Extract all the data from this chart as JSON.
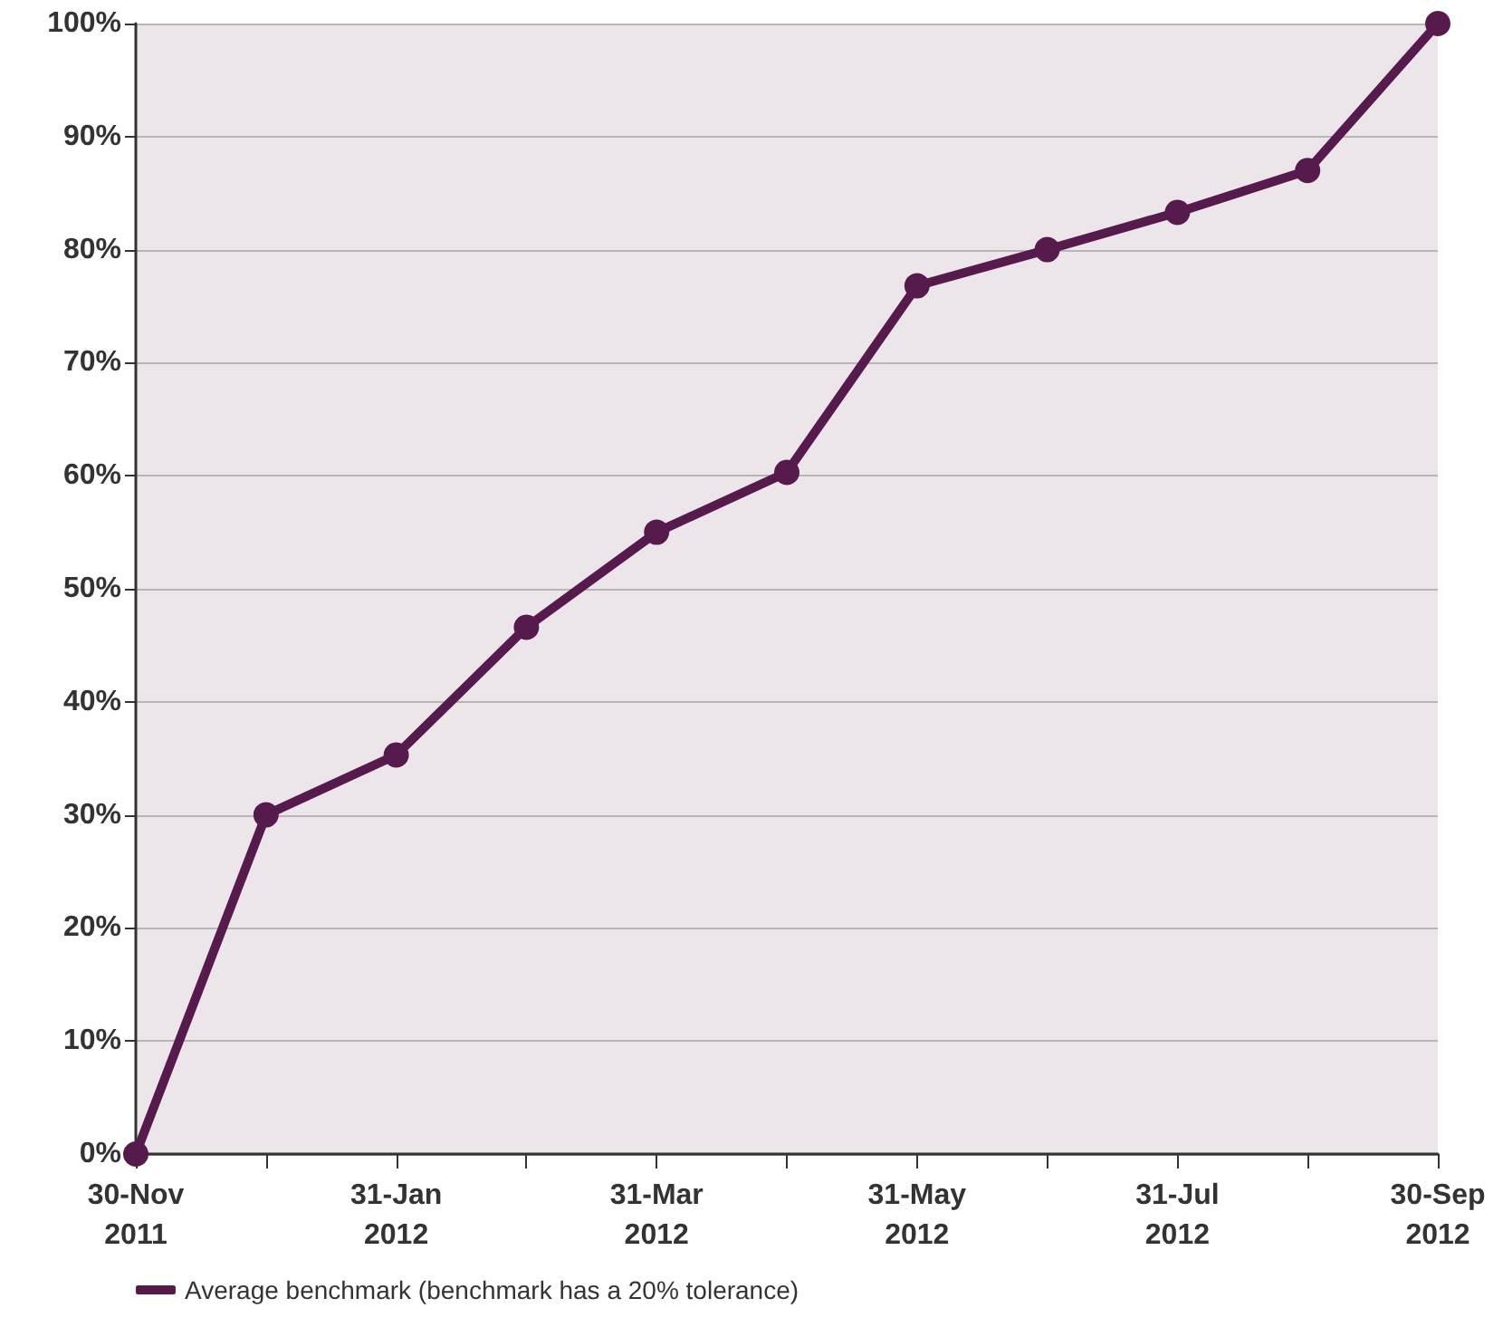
{
  "chart_data": {
    "type": "line",
    "categories": [
      "30-Nov\n2011",
      null,
      "31-Jan\n2012",
      null,
      "31-Mar\n2012",
      null,
      "31-May\n2012",
      null,
      "31-Jul\n2012",
      null,
      "30-Sep\n2012"
    ],
    "series": [
      {
        "name": "Average benchmark (benchmark has a 20% tolerance)",
        "color": "#561a4c",
        "values": [
          0,
          30,
          35.3,
          46.6,
          55,
          60.3,
          76.8,
          80,
          83.3,
          87,
          100
        ]
      }
    ],
    "ylim": [
      0,
      100
    ],
    "yticks": [
      {
        "value": 0,
        "label": "0%"
      },
      {
        "value": 10,
        "label": "10%"
      },
      {
        "value": 20,
        "label": "20%"
      },
      {
        "value": 30,
        "label": "30%"
      },
      {
        "value": 40,
        "label": "40%"
      },
      {
        "value": 50,
        "label": "50%"
      },
      {
        "value": 60,
        "label": "60%"
      },
      {
        "value": 70,
        "label": "70%"
      },
      {
        "value": 80,
        "label": "80%"
      },
      {
        "value": 90,
        "label": "90%"
      },
      {
        "value": 100,
        "label": "100%"
      }
    ],
    "grid": "y",
    "legend": "bottom left",
    "marker": "circle",
    "line_style": "solid"
  }
}
